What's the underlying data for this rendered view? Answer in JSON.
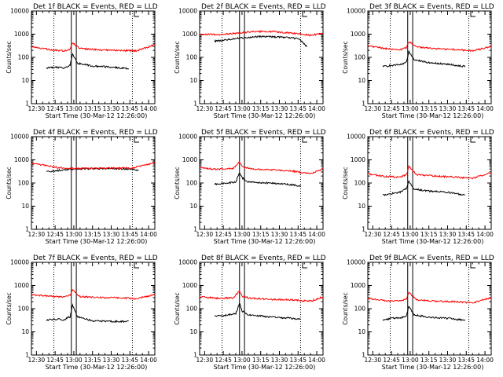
{
  "figure": {
    "xlabel": "Start Time (30-Mar-12 12:26:00)",
    "ylabel": "Counts/sec",
    "x_tick_labels": [
      "12:30",
      "12:45",
      "13:00",
      "13:15",
      "13:30",
      "13:45",
      "14:00"
    ],
    "y_tick_labels": [
      "1",
      "10",
      "100",
      "1000",
      "10000"
    ],
    "colors": {
      "events": "#000000",
      "lld": "#ff0000",
      "axes": "#000000",
      "background": "#ffffff"
    }
  },
  "chart_data": [
    {
      "type": "line",
      "title": "Det 1f BLACK = Events, RED = LLD",
      "xlabel": "Start Time (30-Mar-12 12:26:00)",
      "ylabel": "Counts/sec",
      "xlim": [
        "12:26",
        "14:05"
      ],
      "ylim": [
        1,
        10000
      ],
      "yscale": "log",
      "dotted_lines": [
        "12:44",
        "13:47"
      ],
      "solid_lines": [
        "12:58",
        "13:02"
      ],
      "series": [
        {
          "name": "Events",
          "color": "#000000",
          "x": [
            "12:38",
            "12:45",
            "12:52",
            "12:57",
            "12:59",
            "13:03",
            "13:15",
            "13:30",
            "13:44"
          ],
          "values": [
            35,
            37,
            35,
            45,
            140,
            55,
            42,
            38,
            32
          ]
        },
        {
          "name": "LLD",
          "color": "#ff0000",
          "x": [
            "12:26",
            "12:40",
            "12:52",
            "12:57",
            "12:59",
            "13:05",
            "13:20",
            "13:35",
            "13:50",
            "14:05"
          ],
          "values": [
            280,
            220,
            190,
            220,
            420,
            240,
            210,
            200,
            190,
            350
          ]
        }
      ]
    },
    {
      "type": "line",
      "title": "Det 2f BLACK = Events, RED = LLD",
      "xlabel": "Start Time (30-Mar-12 12:26:00)",
      "ylabel": "Counts/sec",
      "xlim": [
        "12:26",
        "14:05"
      ],
      "ylim": [
        1,
        10000
      ],
      "yscale": "log",
      "dotted_lines": [
        "12:44",
        "13:47"
      ],
      "solid_lines": [
        "12:58",
        "13:02"
      ],
      "series": [
        {
          "name": "Events",
          "color": "#000000",
          "x": [
            "12:38",
            "12:50",
            "13:00",
            "13:15",
            "13:30",
            "13:45",
            "13:52"
          ],
          "values": [
            500,
            600,
            700,
            800,
            750,
            650,
            300
          ]
        },
        {
          "name": "LLD",
          "color": "#ff0000",
          "x": [
            "12:26",
            "12:40",
            "12:55",
            "13:10",
            "13:25",
            "13:40",
            "13:55",
            "14:05"
          ],
          "values": [
            1000,
            950,
            1100,
            1300,
            1300,
            1100,
            900,
            1100
          ]
        }
      ]
    },
    {
      "type": "line",
      "title": "Det 3f BLACK = Events, RED = LLD",
      "xlabel": "Start Time (30-Mar-12 12:26:00)",
      "ylabel": "Counts/sec",
      "xlim": [
        "12:26",
        "14:05"
      ],
      "ylim": [
        1,
        10000
      ],
      "yscale": "log",
      "dotted_lines": [
        "12:44",
        "13:47"
      ],
      "solid_lines": [
        "12:58",
        "13:02"
      ],
      "series": [
        {
          "name": "Events",
          "color": "#000000",
          "x": [
            "12:38",
            "12:45",
            "12:52",
            "12:57",
            "12:59",
            "13:03",
            "13:15",
            "13:30",
            "13:44"
          ],
          "values": [
            40,
            45,
            48,
            60,
            180,
            80,
            60,
            50,
            40
          ]
        },
        {
          "name": "LLD",
          "color": "#ff0000",
          "x": [
            "12:26",
            "12:40",
            "12:52",
            "12:57",
            "12:59",
            "13:05",
            "13:20",
            "13:35",
            "13:50",
            "14:05"
          ],
          "values": [
            320,
            240,
            210,
            260,
            480,
            280,
            240,
            220,
            190,
            300
          ]
        }
      ]
    },
    {
      "type": "line",
      "title": "Det 4f BLACK = Events, RED = LLD",
      "xlabel": "Start Time (30-Mar-12 12:26:00)",
      "ylabel": "Counts/sec",
      "xlim": [
        "12:26",
        "14:05"
      ],
      "ylim": [
        1,
        10000
      ],
      "yscale": "log",
      "dotted_lines": [
        "12:44",
        "13:47"
      ],
      "solid_lines": [
        "12:58",
        "13:02"
      ],
      "series": [
        {
          "name": "Events",
          "color": "#000000",
          "x": [
            "12:38",
            "12:50",
            "13:00",
            "13:15",
            "13:30",
            "13:45",
            "13:52"
          ],
          "values": [
            300,
            360,
            400,
            420,
            420,
            400,
            350
          ]
        },
        {
          "name": "LLD",
          "color": "#ff0000",
          "x": [
            "12:26",
            "12:35",
            "12:45",
            "13:00",
            "13:15",
            "13:30",
            "13:45",
            "13:55",
            "14:05"
          ],
          "values": [
            700,
            600,
            480,
            420,
            430,
            440,
            430,
            550,
            800
          ]
        }
      ]
    },
    {
      "type": "line",
      "title": "Det 5f BLACK = Events, RED = LLD",
      "xlabel": "Start Time (30-Mar-12 12:26:00)",
      "ylabel": "Counts/sec",
      "xlim": [
        "12:26",
        "14:05"
      ],
      "ylim": [
        1,
        10000
      ],
      "yscale": "log",
      "dotted_lines": [
        "12:44",
        "13:47"
      ],
      "solid_lines": [
        "12:58",
        "13:02"
      ],
      "series": [
        {
          "name": "Events",
          "color": "#000000",
          "x": [
            "12:38",
            "12:45",
            "12:55",
            "12:58",
            "13:00",
            "13:05",
            "13:20",
            "13:35",
            "13:47"
          ],
          "values": [
            90,
            95,
            110,
            280,
            170,
            110,
            100,
            90,
            75
          ]
        },
        {
          "name": "LLD",
          "color": "#ff0000",
          "x": [
            "12:26",
            "12:40",
            "12:53",
            "12:58",
            "13:00",
            "13:08",
            "13:25",
            "13:40",
            "13:55",
            "14:05"
          ],
          "values": [
            450,
            390,
            420,
            800,
            500,
            400,
            370,
            330,
            250,
            420
          ]
        }
      ]
    },
    {
      "type": "line",
      "title": "Det 6f BLACK = Events, RED = LLD",
      "xlabel": "Start Time (30-Mar-12 12:26:00)",
      "ylabel": "Counts/sec",
      "xlim": [
        "12:26",
        "14:05"
      ],
      "ylim": [
        1,
        10000
      ],
      "yscale": "log",
      "dotted_lines": [
        "12:44",
        "13:47"
      ],
      "solid_lines": [
        "12:58",
        "13:02"
      ],
      "series": [
        {
          "name": "Events",
          "color": "#000000",
          "x": [
            "12:38",
            "12:45",
            "12:52",
            "12:57",
            "12:59",
            "13:03",
            "13:15",
            "13:30",
            "13:44"
          ],
          "values": [
            30,
            35,
            40,
            60,
            120,
            55,
            45,
            40,
            30
          ]
        },
        {
          "name": "LLD",
          "color": "#ff0000",
          "x": [
            "12:26",
            "12:40",
            "12:52",
            "12:57",
            "12:59",
            "13:05",
            "13:20",
            "13:35",
            "13:50",
            "14:05"
          ],
          "values": [
            250,
            190,
            180,
            230,
            520,
            230,
            200,
            180,
            160,
            280
          ]
        }
      ]
    },
    {
      "type": "line",
      "title": "Det 7f BLACK = Events, RED = LLD",
      "xlabel": "Start Time (30-Mar-12 12:26:00)",
      "ylabel": "Counts/sec",
      "xlim": [
        "12:26",
        "14:05"
      ],
      "ylim": [
        1,
        10000
      ],
      "yscale": "log",
      "dotted_lines": [
        "12:44",
        "13:47"
      ],
      "solid_lines": [
        "12:58",
        "13:02"
      ],
      "series": [
        {
          "name": "Events",
          "color": "#000000",
          "x": [
            "12:38",
            "12:45",
            "12:52",
            "12:57",
            "12:59",
            "13:03",
            "13:15",
            "13:30",
            "13:44"
          ],
          "values": [
            32,
            35,
            33,
            45,
            140,
            45,
            30,
            28,
            28
          ]
        },
        {
          "name": "LLD",
          "color": "#ff0000",
          "x": [
            "12:26",
            "12:40",
            "12:52",
            "12:57",
            "12:59",
            "13:05",
            "13:20",
            "13:35",
            "13:50",
            "14:05"
          ],
          "values": [
            400,
            350,
            320,
            380,
            650,
            330,
            300,
            300,
            270,
            400
          ]
        }
      ]
    },
    {
      "type": "line",
      "title": "Det 8f BLACK = Events, RED = LLD",
      "xlabel": "Start Time (30-Mar-12 12:26:00)",
      "ylabel": "Counts/sec",
      "xlim": [
        "12:26",
        "14:05"
      ],
      "ylim": [
        1,
        10000
      ],
      "yscale": "log",
      "dotted_lines": [
        "12:44",
        "13:47"
      ],
      "solid_lines": [
        "12:58",
        "13:02"
      ],
      "series": [
        {
          "name": "Events",
          "color": "#000000",
          "x": [
            "12:38",
            "12:45",
            "12:55",
            "12:58",
            "13:00",
            "13:05",
            "13:20",
            "13:35",
            "13:47"
          ],
          "values": [
            48,
            50,
            60,
            180,
            80,
            55,
            45,
            40,
            35
          ]
        },
        {
          "name": "LLD",
          "color": "#ff0000",
          "x": [
            "12:26",
            "12:40",
            "12:53",
            "12:58",
            "13:00",
            "13:08",
            "13:25",
            "13:40",
            "13:55",
            "14:05"
          ],
          "values": [
            330,
            280,
            290,
            600,
            340,
            280,
            250,
            240,
            210,
            320
          ]
        }
      ]
    },
    {
      "type": "line",
      "title": "Det 9f BLACK = Events, RED = LLD",
      "xlabel": "Start Time (30-Mar-12 12:26:00)",
      "ylabel": "Counts/sec",
      "xlim": [
        "12:26",
        "14:05"
      ],
      "ylim": [
        1,
        10000
      ],
      "yscale": "log",
      "dotted_lines": [
        "12:44",
        "13:47"
      ],
      "solid_lines": [
        "12:58",
        "13:02"
      ],
      "series": [
        {
          "name": "Events",
          "color": "#000000",
          "x": [
            "12:38",
            "12:45",
            "12:52",
            "12:57",
            "12:59",
            "13:03",
            "13:15",
            "13:30",
            "13:44"
          ],
          "values": [
            33,
            38,
            40,
            50,
            130,
            55,
            42,
            38,
            32
          ]
        },
        {
          "name": "LLD",
          "color": "#ff0000",
          "x": [
            "12:26",
            "12:40",
            "12:52",
            "12:57",
            "12:59",
            "13:05",
            "13:20",
            "13:35",
            "13:50",
            "14:05"
          ],
          "values": [
            280,
            220,
            210,
            270,
            520,
            240,
            210,
            200,
            180,
            300
          ]
        }
      ]
    }
  ]
}
